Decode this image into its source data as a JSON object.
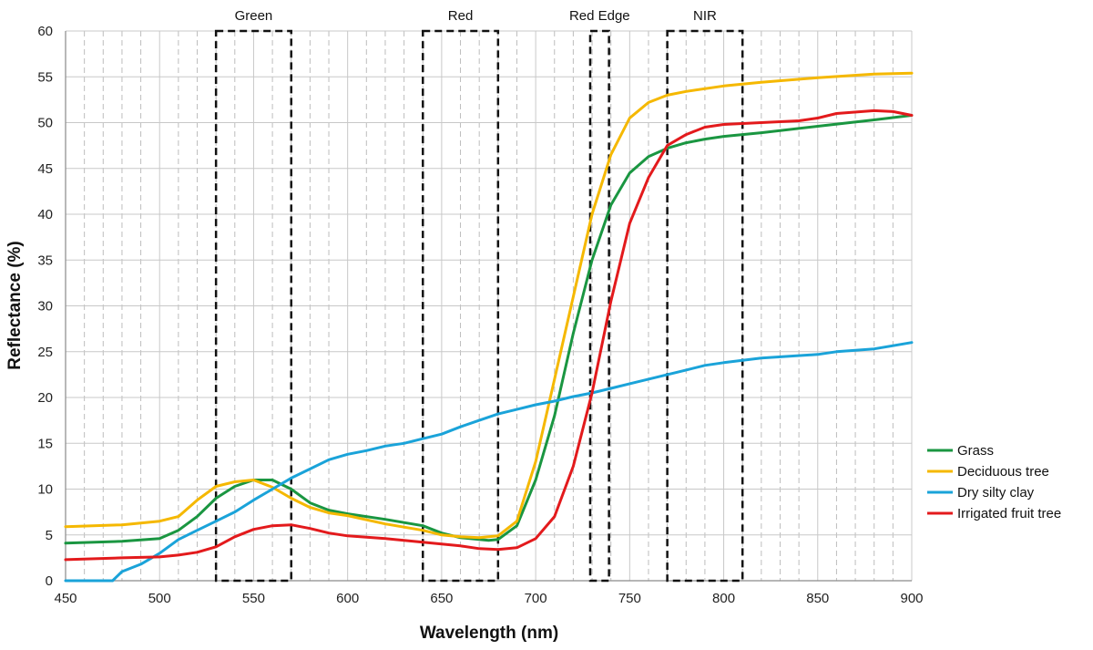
{
  "chart_data": {
    "type": "line",
    "xlabel": "Wavelength (nm)",
    "ylabel": "Reflectance (%)",
    "xlim": [
      450,
      900
    ],
    "ylim": [
      0,
      60
    ],
    "x_ticks": [
      450,
      500,
      550,
      600,
      650,
      700,
      750,
      800,
      850,
      900
    ],
    "y_ticks": [
      0,
      5,
      10,
      15,
      20,
      25,
      30,
      35,
      40,
      45,
      50,
      55,
      60
    ],
    "grid": true,
    "legend_position": "right",
    "bands": [
      {
        "label": "Green",
        "range": [
          530,
          570
        ]
      },
      {
        "label": "Red",
        "range": [
          640,
          680
        ]
      },
      {
        "label": "Red Edge",
        "range": [
          729,
          739
        ]
      },
      {
        "label": "NIR",
        "range": [
          770,
          810
        ]
      }
    ],
    "series": [
      {
        "name": "Grass",
        "color": "#1a9641",
        "points": [
          [
            450,
            4.1
          ],
          [
            480,
            4.3
          ],
          [
            500,
            4.6
          ],
          [
            510,
            5.5
          ],
          [
            520,
            7.0
          ],
          [
            530,
            9.0
          ],
          [
            540,
            10.3
          ],
          [
            550,
            11.0
          ],
          [
            560,
            11.0
          ],
          [
            570,
            10.0
          ],
          [
            580,
            8.5
          ],
          [
            590,
            7.7
          ],
          [
            600,
            7.3
          ],
          [
            620,
            6.7
          ],
          [
            640,
            6.0
          ],
          [
            650,
            5.2
          ],
          [
            660,
            4.7
          ],
          [
            670,
            4.5
          ],
          [
            675,
            4.4
          ],
          [
            680,
            4.5
          ],
          [
            690,
            6.0
          ],
          [
            700,
            11.0
          ],
          [
            710,
            18.0
          ],
          [
            720,
            27.0
          ],
          [
            730,
            35.0
          ],
          [
            740,
            41.0
          ],
          [
            750,
            44.5
          ],
          [
            760,
            46.3
          ],
          [
            770,
            47.2
          ],
          [
            780,
            47.8
          ],
          [
            790,
            48.2
          ],
          [
            800,
            48.5
          ],
          [
            820,
            48.9
          ],
          [
            850,
            49.6
          ],
          [
            880,
            50.3
          ],
          [
            900,
            50.8
          ]
        ]
      },
      {
        "name": "Deciduous tree",
        "color": "#f5b800",
        "points": [
          [
            450,
            5.9
          ],
          [
            480,
            6.1
          ],
          [
            500,
            6.5
          ],
          [
            510,
            7.0
          ],
          [
            520,
            8.8
          ],
          [
            530,
            10.3
          ],
          [
            540,
            10.8
          ],
          [
            550,
            11.0
          ],
          [
            560,
            10.2
          ],
          [
            570,
            9.0
          ],
          [
            580,
            8.0
          ],
          [
            590,
            7.4
          ],
          [
            600,
            7.1
          ],
          [
            620,
            6.2
          ],
          [
            640,
            5.5
          ],
          [
            650,
            5.0
          ],
          [
            660,
            4.8
          ],
          [
            670,
            4.7
          ],
          [
            680,
            4.9
          ],
          [
            690,
            6.5
          ],
          [
            700,
            13.0
          ],
          [
            710,
            22.0
          ],
          [
            720,
            31.0
          ],
          [
            730,
            40.0
          ],
          [
            740,
            46.5
          ],
          [
            750,
            50.5
          ],
          [
            760,
            52.2
          ],
          [
            770,
            53.0
          ],
          [
            780,
            53.4
          ],
          [
            800,
            54.0
          ],
          [
            820,
            54.4
          ],
          [
            850,
            54.9
          ],
          [
            880,
            55.3
          ],
          [
            900,
            55.4
          ]
        ]
      },
      {
        "name": "Dry silty clay",
        "color": "#1aa3d9",
        "points": [
          [
            450,
            0.0
          ],
          [
            470,
            0.0
          ],
          [
            475,
            0.0
          ],
          [
            480,
            1.0
          ],
          [
            490,
            1.8
          ],
          [
            500,
            3.0
          ],
          [
            510,
            4.5
          ],
          [
            520,
            5.5
          ],
          [
            530,
            6.5
          ],
          [
            540,
            7.5
          ],
          [
            550,
            8.8
          ],
          [
            560,
            10.0
          ],
          [
            570,
            11.2
          ],
          [
            580,
            12.2
          ],
          [
            590,
            13.2
          ],
          [
            600,
            13.8
          ],
          [
            610,
            14.2
          ],
          [
            620,
            14.7
          ],
          [
            630,
            15.0
          ],
          [
            640,
            15.5
          ],
          [
            650,
            16.0
          ],
          [
            660,
            16.8
          ],
          [
            670,
            17.5
          ],
          [
            680,
            18.2
          ],
          [
            690,
            18.7
          ],
          [
            700,
            19.2
          ],
          [
            710,
            19.6
          ],
          [
            720,
            20.1
          ],
          [
            730,
            20.5
          ],
          [
            740,
            21.0
          ],
          [
            750,
            21.5
          ],
          [
            760,
            22.0
          ],
          [
            770,
            22.5
          ],
          [
            780,
            23.0
          ],
          [
            790,
            23.5
          ],
          [
            800,
            23.8
          ],
          [
            820,
            24.3
          ],
          [
            850,
            24.7
          ],
          [
            860,
            25.0
          ],
          [
            880,
            25.3
          ],
          [
            900,
            26.0
          ]
        ]
      },
      {
        "name": "Irrigated fruit tree",
        "color": "#e31a1c",
        "points": [
          [
            450,
            2.3
          ],
          [
            480,
            2.5
          ],
          [
            500,
            2.6
          ],
          [
            510,
            2.8
          ],
          [
            520,
            3.1
          ],
          [
            530,
            3.7
          ],
          [
            540,
            4.8
          ],
          [
            550,
            5.6
          ],
          [
            560,
            6.0
          ],
          [
            570,
            6.1
          ],
          [
            580,
            5.7
          ],
          [
            590,
            5.2
          ],
          [
            600,
            4.9
          ],
          [
            620,
            4.6
          ],
          [
            640,
            4.2
          ],
          [
            660,
            3.8
          ],
          [
            670,
            3.5
          ],
          [
            680,
            3.4
          ],
          [
            690,
            3.6
          ],
          [
            700,
            4.6
          ],
          [
            710,
            7.0
          ],
          [
            720,
            12.5
          ],
          [
            730,
            20.5
          ],
          [
            740,
            30.5
          ],
          [
            750,
            39.0
          ],
          [
            760,
            44.0
          ],
          [
            770,
            47.5
          ],
          [
            780,
            48.7
          ],
          [
            790,
            49.5
          ],
          [
            800,
            49.8
          ],
          [
            820,
            50.0
          ],
          [
            840,
            50.2
          ],
          [
            850,
            50.5
          ],
          [
            860,
            51.0
          ],
          [
            880,
            51.3
          ],
          [
            890,
            51.2
          ],
          [
            900,
            50.8
          ]
        ]
      }
    ]
  }
}
